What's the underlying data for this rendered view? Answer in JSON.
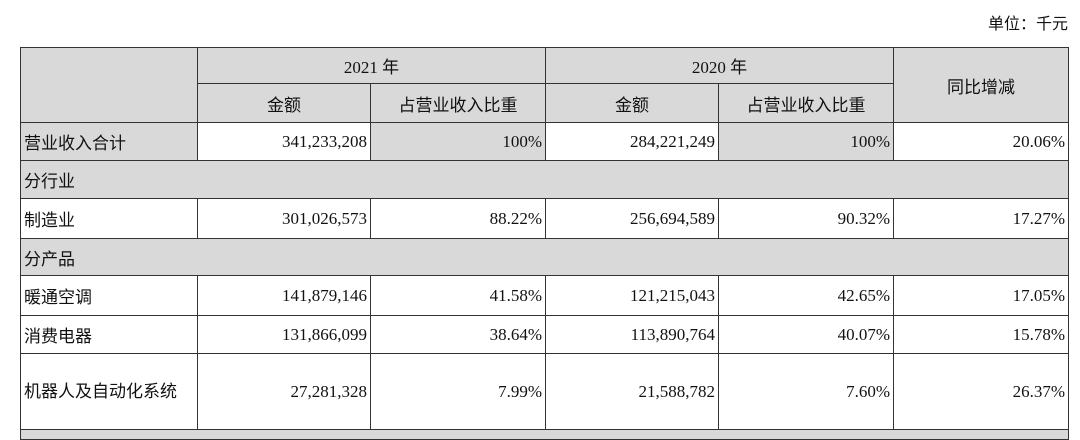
{
  "unit_label": "单位：千元",
  "header": {
    "year_2021": "2021 年",
    "year_2020": "2020 年",
    "yoy": "同比增减",
    "amount": "金额",
    "share": "占营业收入比重"
  },
  "rows": [
    {
      "label": "营业收入合计",
      "amt2021": "341,233,208",
      "pct2021": "100%",
      "amt2020": "284,221,249",
      "pct2020": "100%",
      "yoy": "20.06%"
    },
    {
      "section": "分行业"
    },
    {
      "label": "制造业",
      "amt2021": "301,026,573",
      "pct2021": "88.22%",
      "amt2020": "256,694,589",
      "pct2020": "90.32%",
      "yoy": "17.27%"
    },
    {
      "section": "分产品"
    },
    {
      "label": "暖通空调",
      "amt2021": "141,879,146",
      "pct2021": "41.58%",
      "amt2020": "121,215,043",
      "pct2020": "42.65%",
      "yoy": "17.05%"
    },
    {
      "label": "消费电器",
      "amt2021": "131,866,099",
      "pct2021": "38.64%",
      "amt2020": "113,890,764",
      "pct2020": "40.07%",
      "yoy": "15.78%"
    },
    {
      "label": "机器人及自动化系统",
      "amt2021": "27,281,328",
      "pct2021": "7.99%",
      "amt2020": "21,588,782",
      "pct2020": "7.60%",
      "yoy": "26.37%"
    }
  ]
}
